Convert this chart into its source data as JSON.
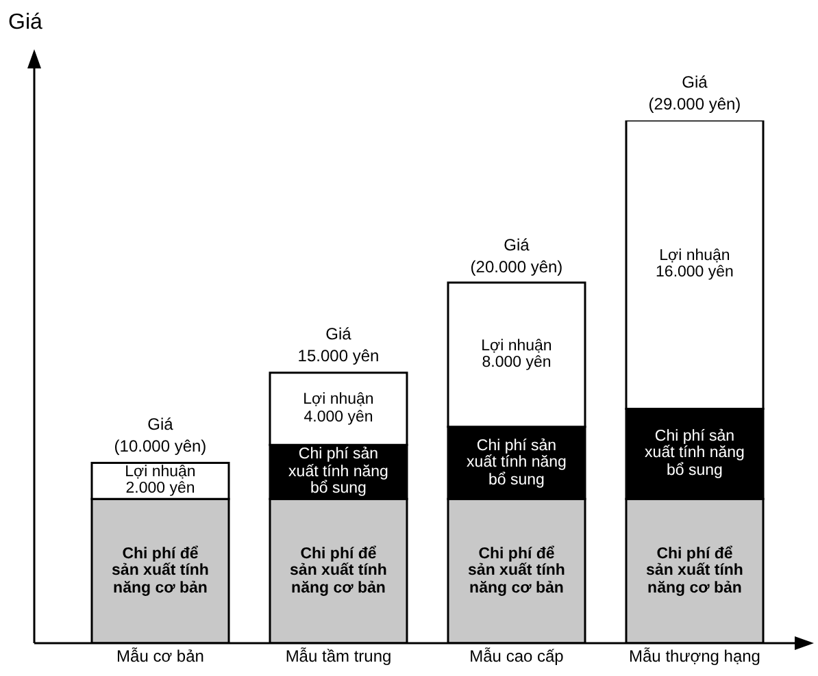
{
  "chart_data": {
    "type": "bar",
    "stacked": true,
    "ylabel": "Giá",
    "categories": [
      "Mẫu cơ bản",
      "Mẫu tầm trung",
      "Mẫu cao cấp",
      "Mẫu thượng hạng"
    ],
    "series": [
      {
        "color": "#c8c8c8",
        "values": [
          8000,
          8000,
          8000,
          8000
        ],
        "value_labels": [
          "Chi phí để sản xuất tính năng cơ bản",
          "Chi phí để sản xuất tính năng cơ bản",
          "Chi phí để sản xuất tính năng cơ bản",
          "Chi phí để sản xuất tính năng cơ bản"
        ]
      },
      {
        "color": "#000000",
        "values": [
          0,
          3000,
          4000,
          5000
        ],
        "value_labels": [
          null,
          "Chi phí sản xuất tính năng bổ sung",
          "Chi phí sản xuất tính năng bổ sung",
          "Chi phí sản xuất tính năng bổ sung"
        ]
      },
      {
        "color": "#ffffff",
        "values": [
          2000,
          4000,
          8000,
          16000
        ],
        "value_labels": [
          "Lợi nhuận 2.000 yên",
          "Lợi nhuận 4.000 yên",
          "Lợi nhuận 8.000 yên",
          "Lợi nhuận 16.000 yên"
        ]
      }
    ],
    "totals": [
      "Giá (10.000 yên)",
      "Giá 15.000 yên",
      "Giá (20.000 yên)",
      "Giá (29.000 yên)"
    ]
  }
}
